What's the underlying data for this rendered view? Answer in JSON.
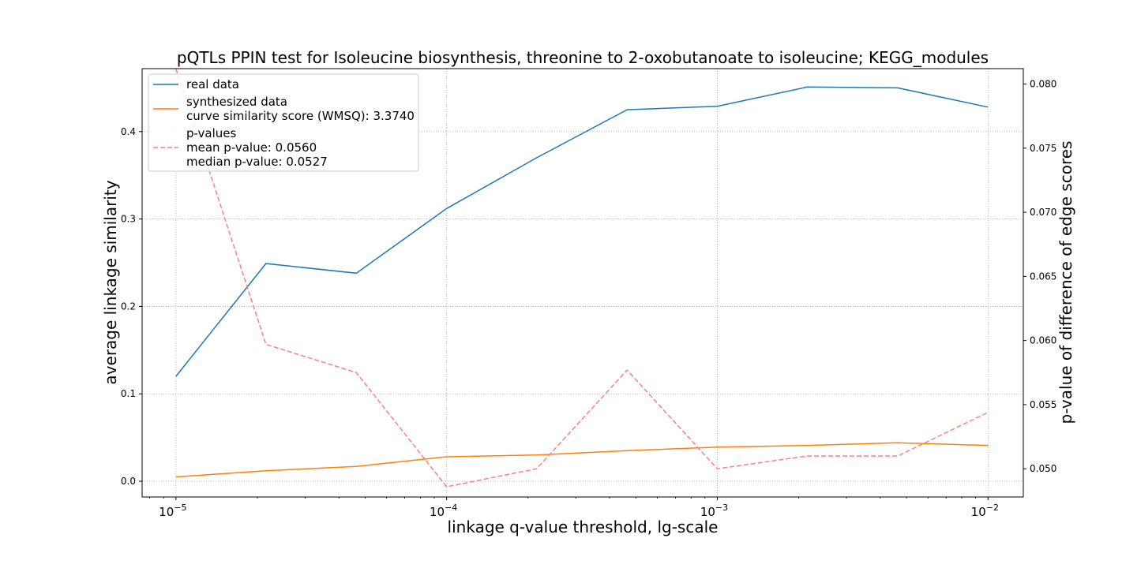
{
  "chart_data": {
    "type": "line",
    "title": "pQTLs PPIN test for Isoleucine biosynthesis, threonine to 2-oxobutanoate to isoleucine; KEGG_modules",
    "xlabel": "linkage q-value threshold, lg-scale",
    "ylabel": "average linkage similarity",
    "y2label": "p-value of difference of edge scores",
    "xscale": "log",
    "xlim": [
      7.5e-06,
      0.0135
    ],
    "ylim": [
      -0.018,
      0.472
    ],
    "y2lim": [
      0.0478,
      0.0812
    ],
    "grid": true,
    "legend_position": "top-left",
    "x_ticks": [
      {
        "value": 1e-05,
        "base": "10",
        "exp": "−5"
      },
      {
        "value": 0.0001,
        "base": "10",
        "exp": "−4"
      },
      {
        "value": 0.001,
        "base": "10",
        "exp": "−3"
      },
      {
        "value": 0.01,
        "base": "10",
        "exp": "−2"
      }
    ],
    "y_ticks": [
      "0.0",
      "0.1",
      "0.2",
      "0.3",
      "0.4"
    ],
    "y2_ticks": [
      "0.050",
      "0.055",
      "0.060",
      "0.065",
      "0.070",
      "0.075",
      "0.080"
    ],
    "x": [
      1e-05,
      2.15e-05,
      4.64e-05,
      0.0001,
      0.000215,
      0.000464,
      0.001,
      0.00215,
      0.00464,
      0.01
    ],
    "series": [
      {
        "name": "real data",
        "axis": "left",
        "color": "#1f77b4",
        "style": "solid",
        "values": [
          0.12,
          0.249,
          0.238,
          0.312,
          0.37,
          0.425,
          0.429,
          0.451,
          0.45,
          0.428
        ]
      },
      {
        "name": "synthesized data",
        "axis": "left",
        "color": "#ff7f0e",
        "style": "solid",
        "values": [
          0.005,
          0.012,
          0.017,
          0.028,
          0.03,
          0.035,
          0.039,
          0.041,
          0.044,
          0.041
        ]
      },
      {
        "name": "p-values",
        "axis": "right",
        "color": "#ff7f7f",
        "style": "dashed",
        "values": [
          0.0812,
          0.0597,
          0.0575,
          0.0486,
          0.05,
          0.0577,
          0.05,
          0.051,
          0.051,
          0.0544
        ]
      }
    ],
    "legend": [
      {
        "series": 0,
        "lines": [
          "real data"
        ]
      },
      {
        "series": 1,
        "lines": [
          "synthesized data",
          "curve similarity score (WMSQ): 3.3740"
        ]
      },
      {
        "series": 2,
        "lines": [
          "p-values",
          "mean p-value: 0.0560",
          "median p-value: 0.0527"
        ]
      }
    ]
  }
}
